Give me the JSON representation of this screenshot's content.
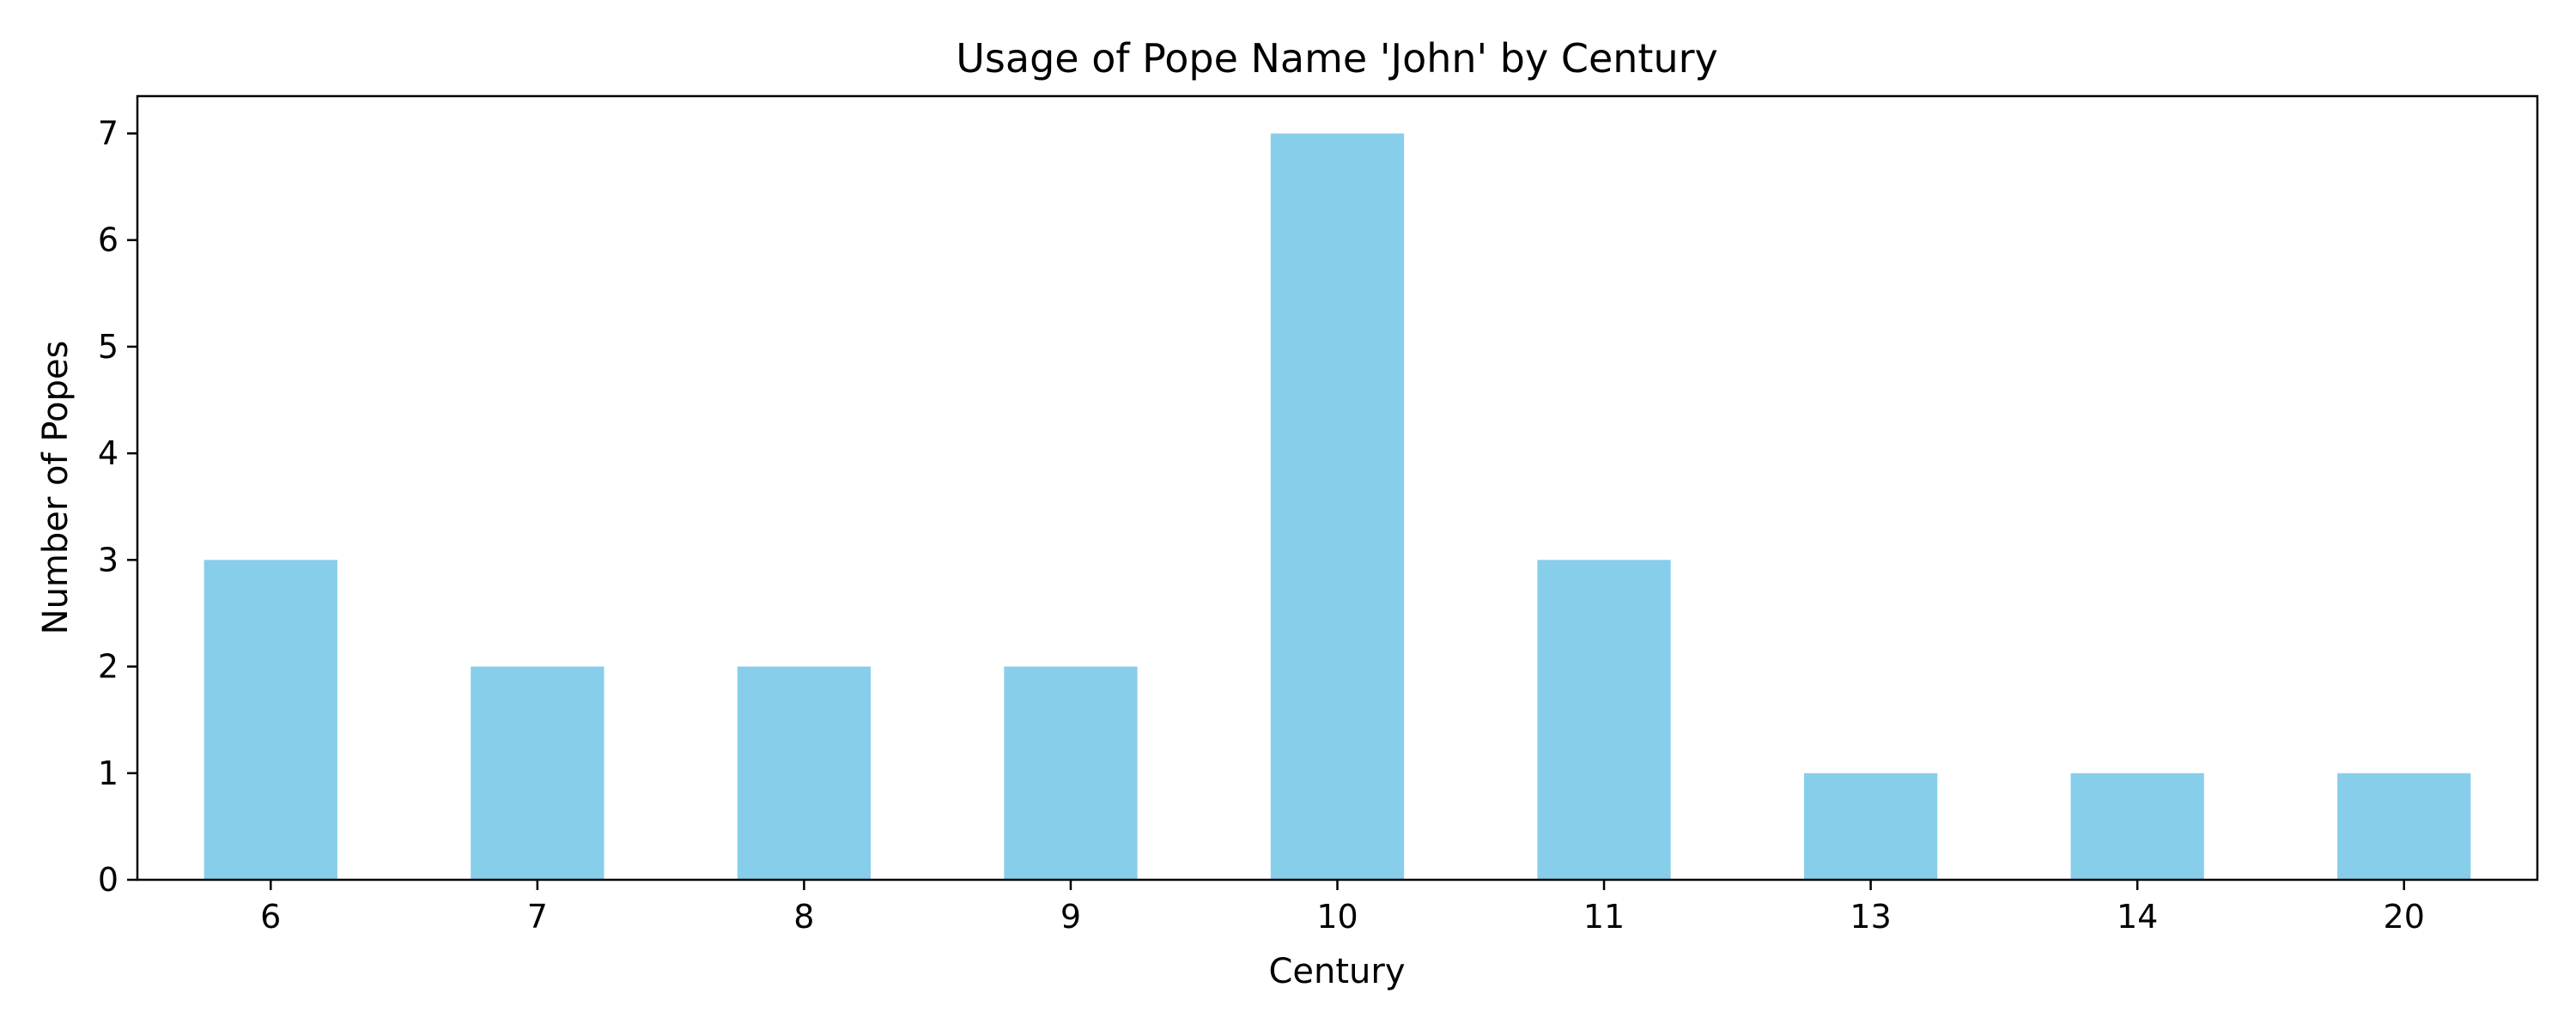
{
  "chart_data": {
    "type": "bar",
    "title": "Usage of Pope Name 'John' by Century",
    "xlabel": "Century",
    "ylabel": "Number of Popes",
    "categories": [
      "6",
      "7",
      "8",
      "9",
      "10",
      "11",
      "13",
      "14",
      "20"
    ],
    "values": [
      3,
      2,
      2,
      2,
      7,
      3,
      1,
      1,
      1
    ],
    "yticks": [
      "0",
      "1",
      "2",
      "3",
      "4",
      "5",
      "6",
      "7"
    ],
    "ylim": [
      0,
      7.35
    ],
    "grid": false,
    "legend": "none",
    "bar_color": "#87CEEB"
  }
}
